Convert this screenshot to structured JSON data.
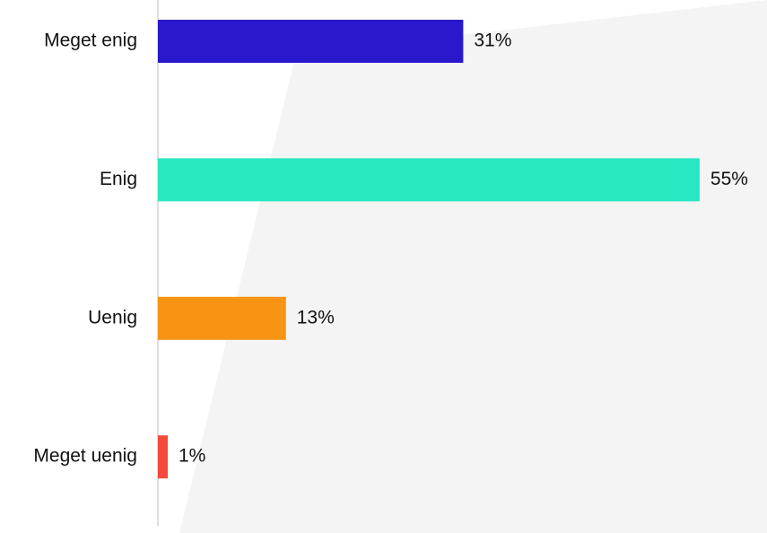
{
  "chart_data": {
    "type": "barh",
    "categories": [
      "Meget enig",
      "Enig",
      "Uenig",
      "Meget uenig"
    ],
    "values": [
      31,
      55,
      13,
      1
    ],
    "value_labels": [
      "31%",
      "55%",
      "13%",
      "1%"
    ],
    "colors": [
      "#2a19cc",
      "#27e8c0",
      "#f79414",
      "#f44a3c"
    ]
  }
}
